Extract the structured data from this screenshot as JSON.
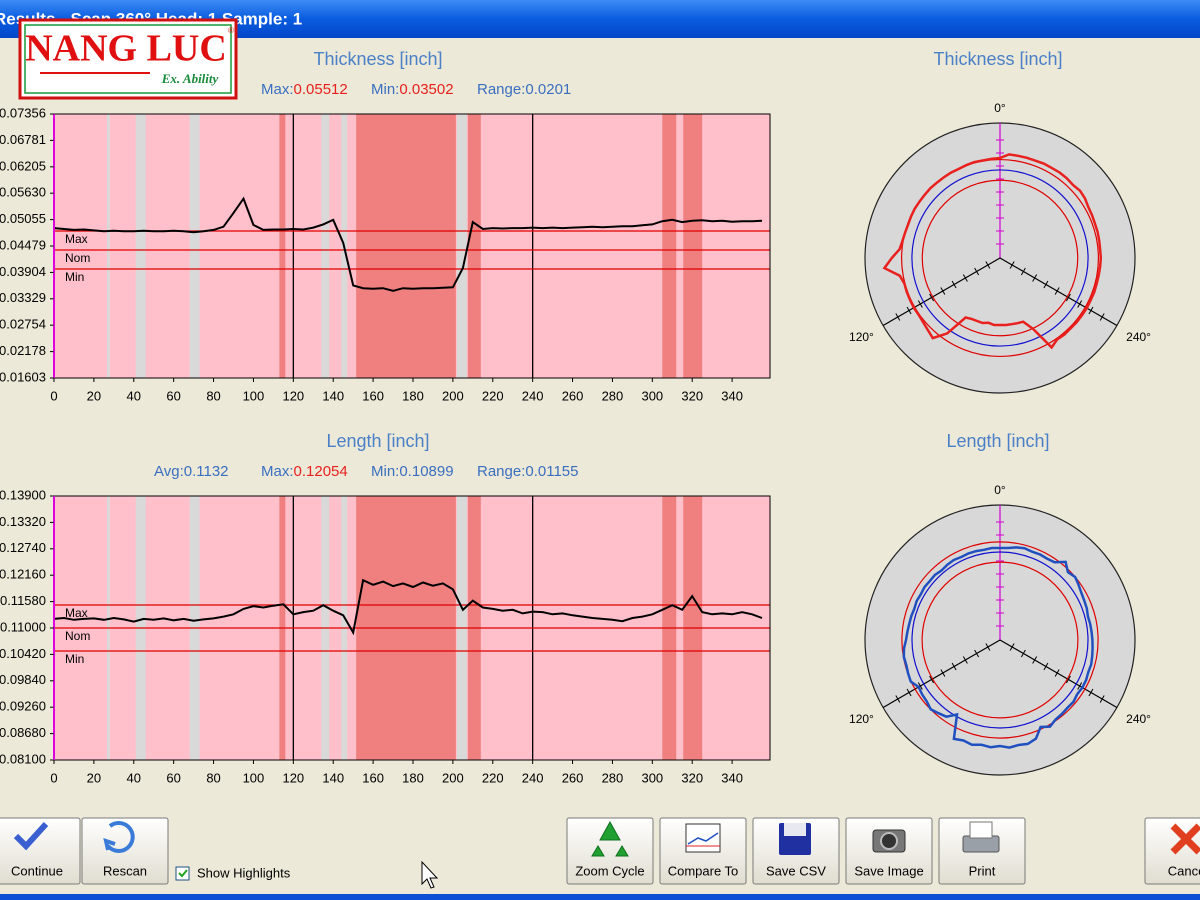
{
  "window": {
    "title": "Results - Scan 360° Head: 1 Sample: 1"
  },
  "logo": {
    "name": "NANG LUC",
    "tagline": "Ex. Ability",
    "mark": "®"
  },
  "chart_data": [
    {
      "type": "line",
      "title": "Thickness [inch]",
      "stats": [
        {
          "label": "Max:",
          "value": 0.05512,
          "color": "#e8201e"
        },
        {
          "label": "Min:",
          "value": 0.03502,
          "color": "#e8201e"
        },
        {
          "label": "Range:",
          "value": 0.0201,
          "color": "#3a6fc0"
        }
      ],
      "x": [
        0,
        5,
        10,
        15,
        20,
        25,
        30,
        35,
        40,
        45,
        50,
        55,
        60,
        65,
        70,
        75,
        80,
        85,
        90,
        95,
        100,
        105,
        110,
        115,
        120,
        125,
        130,
        135,
        140,
        145,
        150,
        155,
        160,
        165,
        170,
        175,
        180,
        185,
        190,
        195,
        200,
        205,
        210,
        215,
        220,
        225,
        230,
        235,
        240,
        245,
        250,
        255,
        260,
        265,
        270,
        275,
        280,
        285,
        290,
        295,
        300,
        305,
        310,
        315,
        320,
        325,
        330,
        335,
        340,
        345,
        350,
        355
      ],
      "values": [
        0.0487,
        0.0485,
        0.0483,
        0.0484,
        0.0482,
        0.048,
        0.0481,
        0.048,
        0.048,
        0.0481,
        0.048,
        0.048,
        0.0481,
        0.048,
        0.0478,
        0.048,
        0.0483,
        0.049,
        0.052,
        0.05512,
        0.0494,
        0.0483,
        0.0484,
        0.0484,
        0.0485,
        0.0484,
        0.0488,
        0.0495,
        0.0505,
        0.0455,
        0.0362,
        0.0356,
        0.0355,
        0.0356,
        0.03502,
        0.0356,
        0.0355,
        0.0356,
        0.0356,
        0.0357,
        0.0358,
        0.04,
        0.05,
        0.0485,
        0.0487,
        0.0486,
        0.0487,
        0.0487,
        0.0488,
        0.0487,
        0.0488,
        0.0487,
        0.0488,
        0.0489,
        0.049,
        0.0489,
        0.049,
        0.0491,
        0.0491,
        0.0493,
        0.0495,
        0.0502,
        0.0505,
        0.05,
        0.0503,
        0.0504,
        0.0502,
        0.0503,
        0.0501,
        0.0502,
        0.0502,
        0.0503
      ],
      "color": "#000000",
      "background": "#ffc0cb",
      "xlim": [
        0,
        359
      ],
      "xticks": [
        0,
        20,
        40,
        60,
        80,
        100,
        120,
        140,
        160,
        180,
        200,
        220,
        240,
        260,
        280,
        300,
        320,
        340
      ],
      "ylim": [
        0.01603,
        0.07356
      ],
      "yticks": [
        0.01603,
        0.02178,
        0.02754,
        0.03329,
        0.03904,
        0.04479,
        0.05055,
        {
          "value": 0.0563,
          "label": "0.05630"
        },
        0.06205,
        0.06781,
        0.07356
      ],
      "limits": [
        {
          "label": "Max",
          "value": 0.04807,
          "color": "#e00000"
        },
        {
          "label": "Nom",
          "value": 0.04393,
          "color": "#e00000"
        },
        {
          "label": "Min",
          "value": 0.03979,
          "color": "#e00000"
        }
      ],
      "markers": [
        120,
        240
      ],
      "highlights": [
        {
          "range": [
            26.5,
            28
          ],
          "color": "#d9d9d9"
        },
        {
          "range": [
            41,
            46
          ],
          "color": "#d9d9d9"
        },
        {
          "range": [
            68,
            73
          ],
          "color": "#d9d9d9"
        },
        {
          "range": [
            113,
            116
          ],
          "color": "#f08080"
        },
        {
          "range": [
            134,
            138
          ],
          "color": "#d9d9d9"
        },
        {
          "range": [
            144,
            147
          ],
          "color": "#d9d9d9"
        },
        {
          "range": [
            151.5,
            201.5
          ],
          "color": "#f08080"
        },
        {
          "range": [
            202,
            207
          ],
          "color": "#d9d9d9"
        },
        {
          "range": [
            207.5,
            214
          ],
          "color": "#f08080"
        },
        {
          "range": [
            305,
            312
          ],
          "color": "#f08080"
        },
        {
          "range": [
            315.5,
            325
          ],
          "color": "#f08080"
        }
      ],
      "polar": {
        "type": "polar",
        "title": "Thickness [inch]",
        "angle_ticks": [
          {
            "value": 0,
            "label": "0°"
          },
          {
            "value": 120,
            "label": "120°"
          },
          {
            "value": 240,
            "label": "240°"
          }
        ],
        "rlim": [
          0.0087,
          0.0627
        ],
        "color": "#e8201e",
        "ring_colors": [
          "#e00000",
          "#1010d0",
          "#e00000"
        ]
      }
    },
    {
      "type": "line",
      "title": "Length [inch]",
      "stats": [
        {
          "label": "Avg:",
          "value": 0.1132,
          "color": "#3a6fc0"
        },
        {
          "label": "Max:",
          "value": 0.12054,
          "color": "#e8201e"
        },
        {
          "label": "Min:",
          "value": 0.10899,
          "color": "#3a6fc0"
        },
        {
          "label": "Range:",
          "value": 0.01155,
          "color": "#3a6fc0"
        }
      ],
      "x": [
        0,
        5,
        10,
        15,
        20,
        25,
        30,
        35,
        40,
        45,
        50,
        55,
        60,
        65,
        70,
        75,
        80,
        85,
        90,
        95,
        100,
        105,
        110,
        115,
        120,
        125,
        130,
        135,
        140,
        145,
        150,
        155,
        160,
        165,
        170,
        175,
        180,
        185,
        190,
        195,
        200,
        205,
        210,
        215,
        220,
        225,
        230,
        235,
        240,
        245,
        250,
        255,
        260,
        265,
        270,
        275,
        280,
        285,
        290,
        295,
        300,
        305,
        310,
        315,
        320,
        325,
        330,
        335,
        340,
        345,
        350,
        355
      ],
      "values": [
        0.112,
        0.1122,
        0.1118,
        0.112,
        0.1121,
        0.1118,
        0.1122,
        0.1119,
        0.1114,
        0.112,
        0.1118,
        0.1121,
        0.1117,
        0.112,
        0.1116,
        0.1119,
        0.1121,
        0.1125,
        0.113,
        0.1142,
        0.1148,
        0.1145,
        0.1149,
        0.1152,
        0.113,
        0.1135,
        0.1138,
        0.115,
        0.1138,
        0.1128,
        0.109,
        0.1205,
        0.1195,
        0.1202,
        0.1192,
        0.1198,
        0.119,
        0.12,
        0.1193,
        0.1198,
        0.1185,
        0.114,
        0.116,
        0.1145,
        0.1142,
        0.1138,
        0.114,
        0.1132,
        0.1136,
        0.1135,
        0.113,
        0.1132,
        0.1128,
        0.1125,
        0.1122,
        0.112,
        0.1118,
        0.1115,
        0.1122,
        0.1125,
        0.113,
        0.114,
        0.115,
        0.114,
        0.117,
        0.1135,
        0.113,
        0.1132,
        0.113,
        0.1135,
        0.113,
        0.1122
      ],
      "color": "#000000",
      "background": "#ffc0cb",
      "xlim": [
        0,
        359
      ],
      "xticks": [
        0,
        20,
        40,
        60,
        80,
        100,
        120,
        140,
        160,
        180,
        200,
        220,
        240,
        260,
        280,
        300,
        320,
        340
      ],
      "ylim": [
        0.081,
        0.139
      ],
      "yticks": [
        {
          "value": 0.081,
          "label": "0.08100"
        },
        {
          "value": 0.0868,
          "label": "0.08680"
        },
        {
          "value": 0.0926,
          "label": "0.09260"
        },
        {
          "value": 0.0984,
          "label": "0.09840"
        },
        {
          "value": 0.1042,
          "label": "0.10420"
        },
        {
          "value": 0.11,
          "label": "0.11000"
        },
        {
          "value": 0.1158,
          "label": "0.11580"
        },
        {
          "value": 0.1216,
          "label": "0.12160"
        },
        {
          "value": 0.1274,
          "label": "0.12740"
        },
        {
          "value": 0.1332,
          "label": "0.13320"
        },
        {
          "value": 0.139,
          "label": "0.13900"
        }
      ],
      "limits": [
        {
          "label": "Max",
          "value": 0.11505,
          "color": "#e00000"
        },
        {
          "label": "Nom",
          "value": 0.11,
          "color": "#e00000"
        },
        {
          "label": "Min",
          "value": 0.10495,
          "color": "#e00000"
        }
      ],
      "markers": [
        120,
        240
      ],
      "highlights": [
        {
          "range": [
            26.5,
            28
          ],
          "color": "#d9d9d9"
        },
        {
          "range": [
            41,
            46
          ],
          "color": "#d9d9d9"
        },
        {
          "range": [
            68,
            73
          ],
          "color": "#d9d9d9"
        },
        {
          "range": [
            113,
            116
          ],
          "color": "#f08080"
        },
        {
          "range": [
            134,
            138
          ],
          "color": "#d9d9d9"
        },
        {
          "range": [
            144,
            147
          ],
          "color": "#d9d9d9"
        },
        {
          "range": [
            151.5,
            201.5
          ],
          "color": "#f08080"
        },
        {
          "range": [
            202,
            207
          ],
          "color": "#d9d9d9"
        },
        {
          "range": [
            207.5,
            214
          ],
          "color": "#f08080"
        },
        {
          "range": [
            305,
            312
          ],
          "color": "#f08080"
        },
        {
          "range": [
            315.5,
            325
          ],
          "color": "#f08080"
        }
      ],
      "polar": {
        "type": "polar",
        "title": "Length [inch]",
        "angle_ticks": [
          {
            "value": 0,
            "label": "0°"
          },
          {
            "value": 120,
            "label": "120°"
          },
          {
            "value": 240,
            "label": "240°"
          }
        ],
        "rlim": [
          0.066,
          0.1335
        ],
        "color": "#2050c0",
        "ring_colors": [
          "#e00000",
          "#1010d0",
          "#e00000"
        ]
      }
    }
  ],
  "buttons": [
    {
      "label": "Continue"
    },
    {
      "label": "Rescan"
    },
    {
      "label": "Zoom Cycle"
    },
    {
      "label": "Compare To"
    },
    {
      "label": "Save CSV"
    },
    {
      "label": "Save Image"
    },
    {
      "label": "Print"
    },
    {
      "label": "Cancel"
    }
  ],
  "checkbox": {
    "label": "Show Highlights",
    "checked": true
  }
}
